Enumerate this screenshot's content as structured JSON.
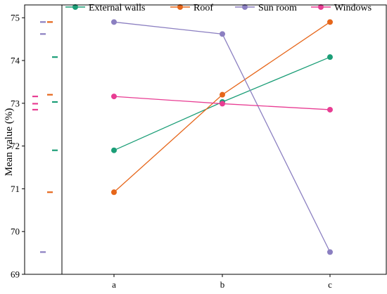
{
  "chart_data": {
    "type": "line",
    "categories": [
      "a",
      "b",
      "c"
    ],
    "series": [
      {
        "name": "External walls",
        "values": [
          71.9,
          73.03,
          74.08
        ],
        "color": "#1b9e77"
      },
      {
        "name": "Roof",
        "values": [
          70.92,
          73.2,
          74.9
        ],
        "color": "#e6661a"
      },
      {
        "name": "Sun room",
        "values": [
          74.9,
          74.62,
          69.52
        ],
        "color": "#8b7fc1"
      },
      {
        "name": "Windows",
        "values": [
          73.16,
          72.99,
          72.85
        ],
        "color": "#e83d93"
      }
    ],
    "marginal_ticks": [
      {
        "series": "External walls",
        "values": [
          71.9,
          73.03,
          74.08
        ]
      },
      {
        "series": "Roof",
        "values": [
          70.92,
          73.2,
          74.9
        ]
      },
      {
        "series": "Sun room",
        "values": [
          74.9,
          74.62,
          69.52
        ]
      },
      {
        "series": "Windows",
        "values": [
          73.16,
          72.99,
          72.85
        ]
      }
    ],
    "xlabel": "",
    "ylabel": "Mean value (%)",
    "ylim": [
      69,
      75.3
    ],
    "yticks": [
      "69",
      "70",
      "71",
      "72",
      "73",
      "74",
      "75"
    ],
    "legend_position": "top",
    "grid": false
  }
}
